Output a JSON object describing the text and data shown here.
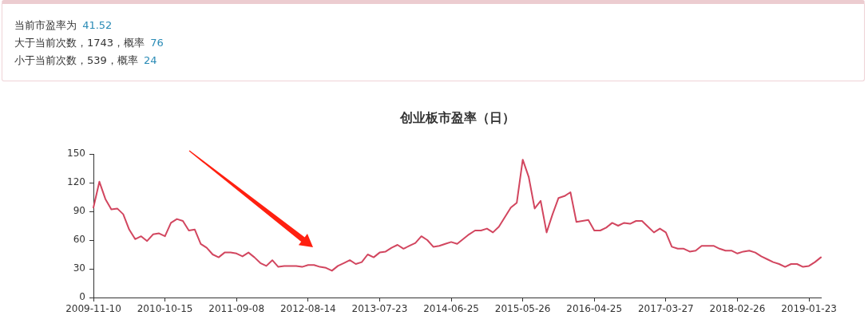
{
  "chart_data": {
    "type": "line",
    "title": "创业板市盈率（日）",
    "annotations": [
      "当前市盈率为 41.52",
      "大于当前次数，1743，概率 76",
      "小于当前次数，539，概率 24"
    ],
    "categories": [
      "2009-11-10",
      null,
      null,
      null,
      null,
      null,
      null,
      null,
      null,
      null,
      null,
      null,
      "2010-10-15",
      null,
      null,
      null,
      null,
      null,
      null,
      null,
      null,
      null,
      null,
      null,
      "2011-09-08",
      null,
      null,
      null,
      null,
      null,
      null,
      null,
      null,
      null,
      null,
      null,
      "2012-08-14",
      null,
      null,
      null,
      null,
      null,
      null,
      null,
      null,
      null,
      null,
      null,
      "2013-07-23",
      null,
      null,
      null,
      null,
      null,
      null,
      null,
      null,
      null,
      null,
      null,
      "2014-06-25",
      null,
      null,
      null,
      null,
      null,
      null,
      null,
      null,
      null,
      null,
      null,
      "2015-05-26",
      null,
      null,
      null,
      null,
      null,
      null,
      null,
      null,
      null,
      null,
      null,
      "2016-04-25",
      null,
      null,
      null,
      null,
      null,
      null,
      null,
      null,
      null,
      null,
      null,
      "2017-03-27",
      null,
      null,
      null,
      null,
      null,
      null,
      null,
      null,
      null,
      null,
      null,
      "2018-02-26",
      null,
      null,
      null,
      null,
      null,
      null,
      null,
      null,
      null,
      null,
      null,
      "2019-01-23",
      null,
      null
    ],
    "series": [
      {
        "color": "#d2465f",
        "values": [
          94,
          121,
          103,
          92,
          93,
          87,
          71,
          61,
          64,
          59,
          66,
          67,
          64,
          78,
          82,
          80,
          70,
          71,
          56,
          52,
          45,
          42,
          47,
          47,
          46,
          43,
          47,
          42,
          36,
          33,
          39,
          32,
          33,
          33,
          33,
          32,
          34,
          34,
          32,
          31,
          28,
          33,
          36,
          39,
          35,
          37,
          45,
          42,
          47,
          48,
          52,
          55,
          51,
          54,
          57,
          64,
          60,
          53,
          54,
          56,
          58,
          56,
          61,
          66,
          70,
          70,
          72,
          68,
          74,
          84,
          94,
          99,
          144,
          126,
          93,
          101,
          68,
          87,
          104,
          106,
          110,
          79,
          80,
          81,
          70,
          70,
          73,
          78,
          75,
          78,
          77,
          80,
          80,
          74,
          68,
          72,
          68,
          53,
          51,
          51,
          48,
          49,
          54,
          54,
          54,
          51,
          49,
          49,
          46,
          48,
          49,
          47,
          43,
          40,
          37,
          35,
          32,
          35,
          35,
          32,
          33,
          37,
          42
        ]
      }
    ],
    "ylim": [
      0,
      150
    ],
    "yticks": [
      0,
      30,
      60,
      90,
      120,
      150
    ],
    "marker": "none"
  }
}
